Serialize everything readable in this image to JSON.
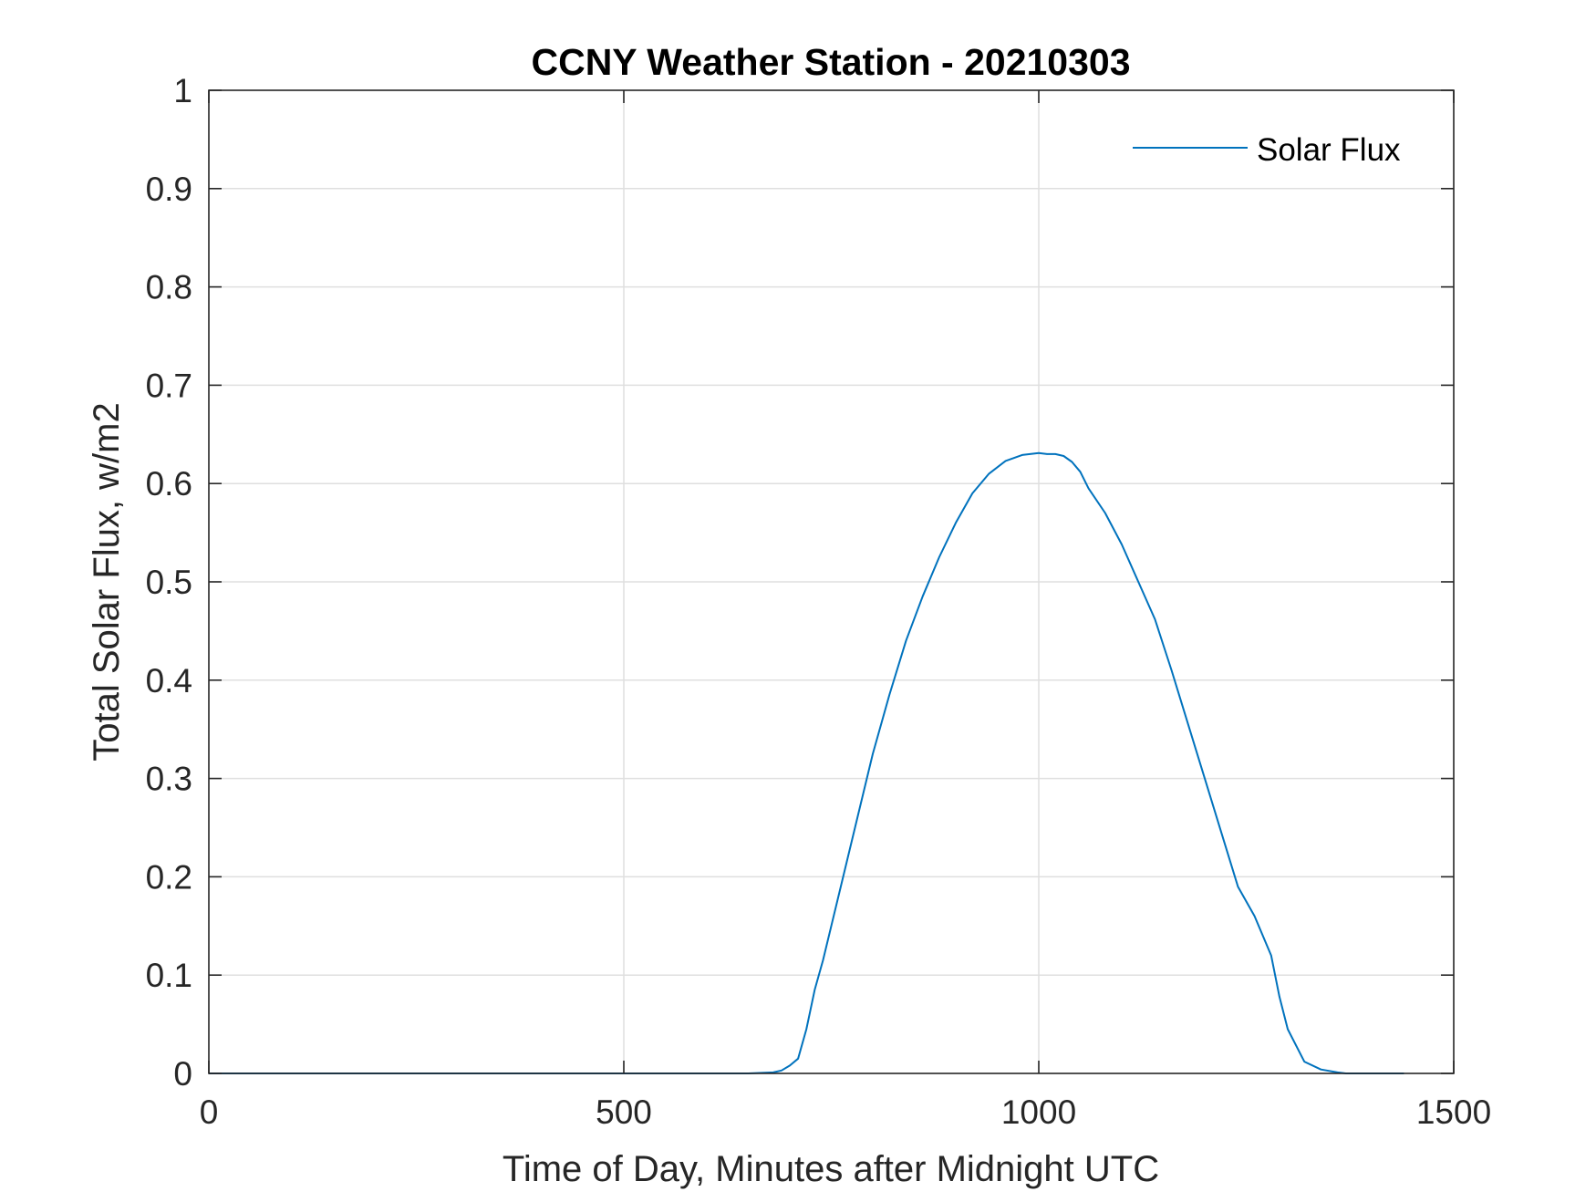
{
  "chart_data": {
    "type": "line",
    "title": "CCNY Weather Station - 20210303",
    "xlabel": "Time of Day, Minutes after Midnight UTC",
    "ylabel": "Total Solar Flux, w/m2",
    "xlim": [
      0,
      1500
    ],
    "ylim": [
      0,
      1
    ],
    "xticks": [
      0,
      500,
      1000,
      1500
    ],
    "xtick_labels": [
      "0",
      "500",
      "1000",
      "1500"
    ],
    "yticks": [
      0,
      0.1,
      0.2,
      0.3,
      0.4,
      0.5,
      0.6,
      0.7,
      0.8,
      0.9,
      1
    ],
    "ytick_labels": [
      "0",
      "0.1",
      "0.2",
      "0.3",
      "0.4",
      "0.5",
      "0.6",
      "0.7",
      "0.8",
      "0.9",
      "1"
    ],
    "grid": true,
    "legend_position": "top-right",
    "series": [
      {
        "name": "Solar Flux",
        "color": "#0072BD",
        "x": [
          0,
          100,
          200,
          300,
          400,
          500,
          600,
          650,
          680,
          690,
          700,
          710,
          720,
          730,
          740,
          750,
          760,
          780,
          800,
          820,
          840,
          860,
          880,
          900,
          920,
          940,
          960,
          980,
          1000,
          1010,
          1020,
          1030,
          1040,
          1050,
          1060,
          1080,
          1100,
          1120,
          1140,
          1160,
          1180,
          1200,
          1220,
          1240,
          1260,
          1280,
          1290,
          1300,
          1320,
          1340,
          1360,
          1370,
          1380,
          1390,
          1400,
          1420,
          1440
        ],
        "y": [
          0,
          0,
          0,
          0,
          0,
          0,
          0,
          0,
          0.001,
          0.003,
          0.008,
          0.015,
          0.045,
          0.085,
          0.115,
          0.15,
          0.185,
          0.255,
          0.325,
          0.385,
          0.44,
          0.485,
          0.525,
          0.56,
          0.59,
          0.61,
          0.623,
          0.629,
          0.631,
          0.63,
          0.63,
          0.628,
          0.622,
          0.612,
          0.595,
          0.57,
          0.538,
          0.5,
          0.462,
          0.41,
          0.355,
          0.3,
          0.245,
          0.19,
          0.16,
          0.12,
          0.078,
          0.045,
          0.012,
          0.004,
          0.001,
          0,
          0,
          0,
          0,
          0,
          0
        ]
      }
    ]
  }
}
